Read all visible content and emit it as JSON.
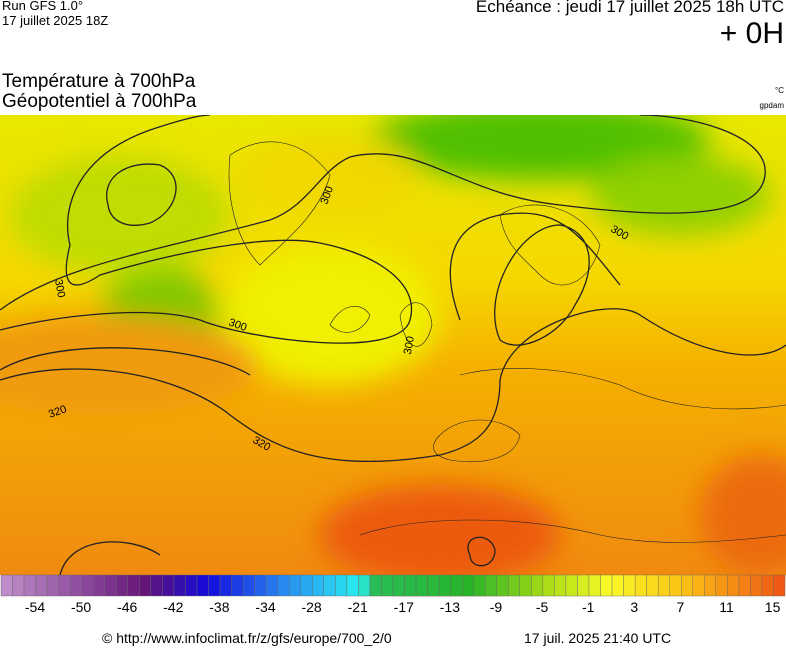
{
  "header": {
    "run": "Run GFS 1.0°",
    "run_date": "17 juillet 2025 18Z",
    "echeance": "Echéance : jeudi 17 juillet 2025 18h UTC",
    "lead": "+ 0H"
  },
  "titles": {
    "line1": "Température à 700hPa",
    "line2": "Géopotentiel à 700hPa",
    "unit1": "°C",
    "unit2": "gpdam"
  },
  "map": {
    "contour_labels": [
      "300",
      "300",
      "300",
      "300",
      "320",
      "320",
      "300"
    ]
  },
  "colorbar": {
    "labels": [
      "-54",
      "-50",
      "-46",
      "-42",
      "-38",
      "-34",
      "-28",
      "-21",
      "-17",
      "-13",
      "-9",
      "-5",
      "-1",
      "3",
      "7",
      "11",
      "15"
    ]
  },
  "footer": {
    "url": "© http://www.infoclimat.fr/z/gfs/europe/700_2/0",
    "timestamp": "17 juil. 2025 21:40 UTC"
  }
}
